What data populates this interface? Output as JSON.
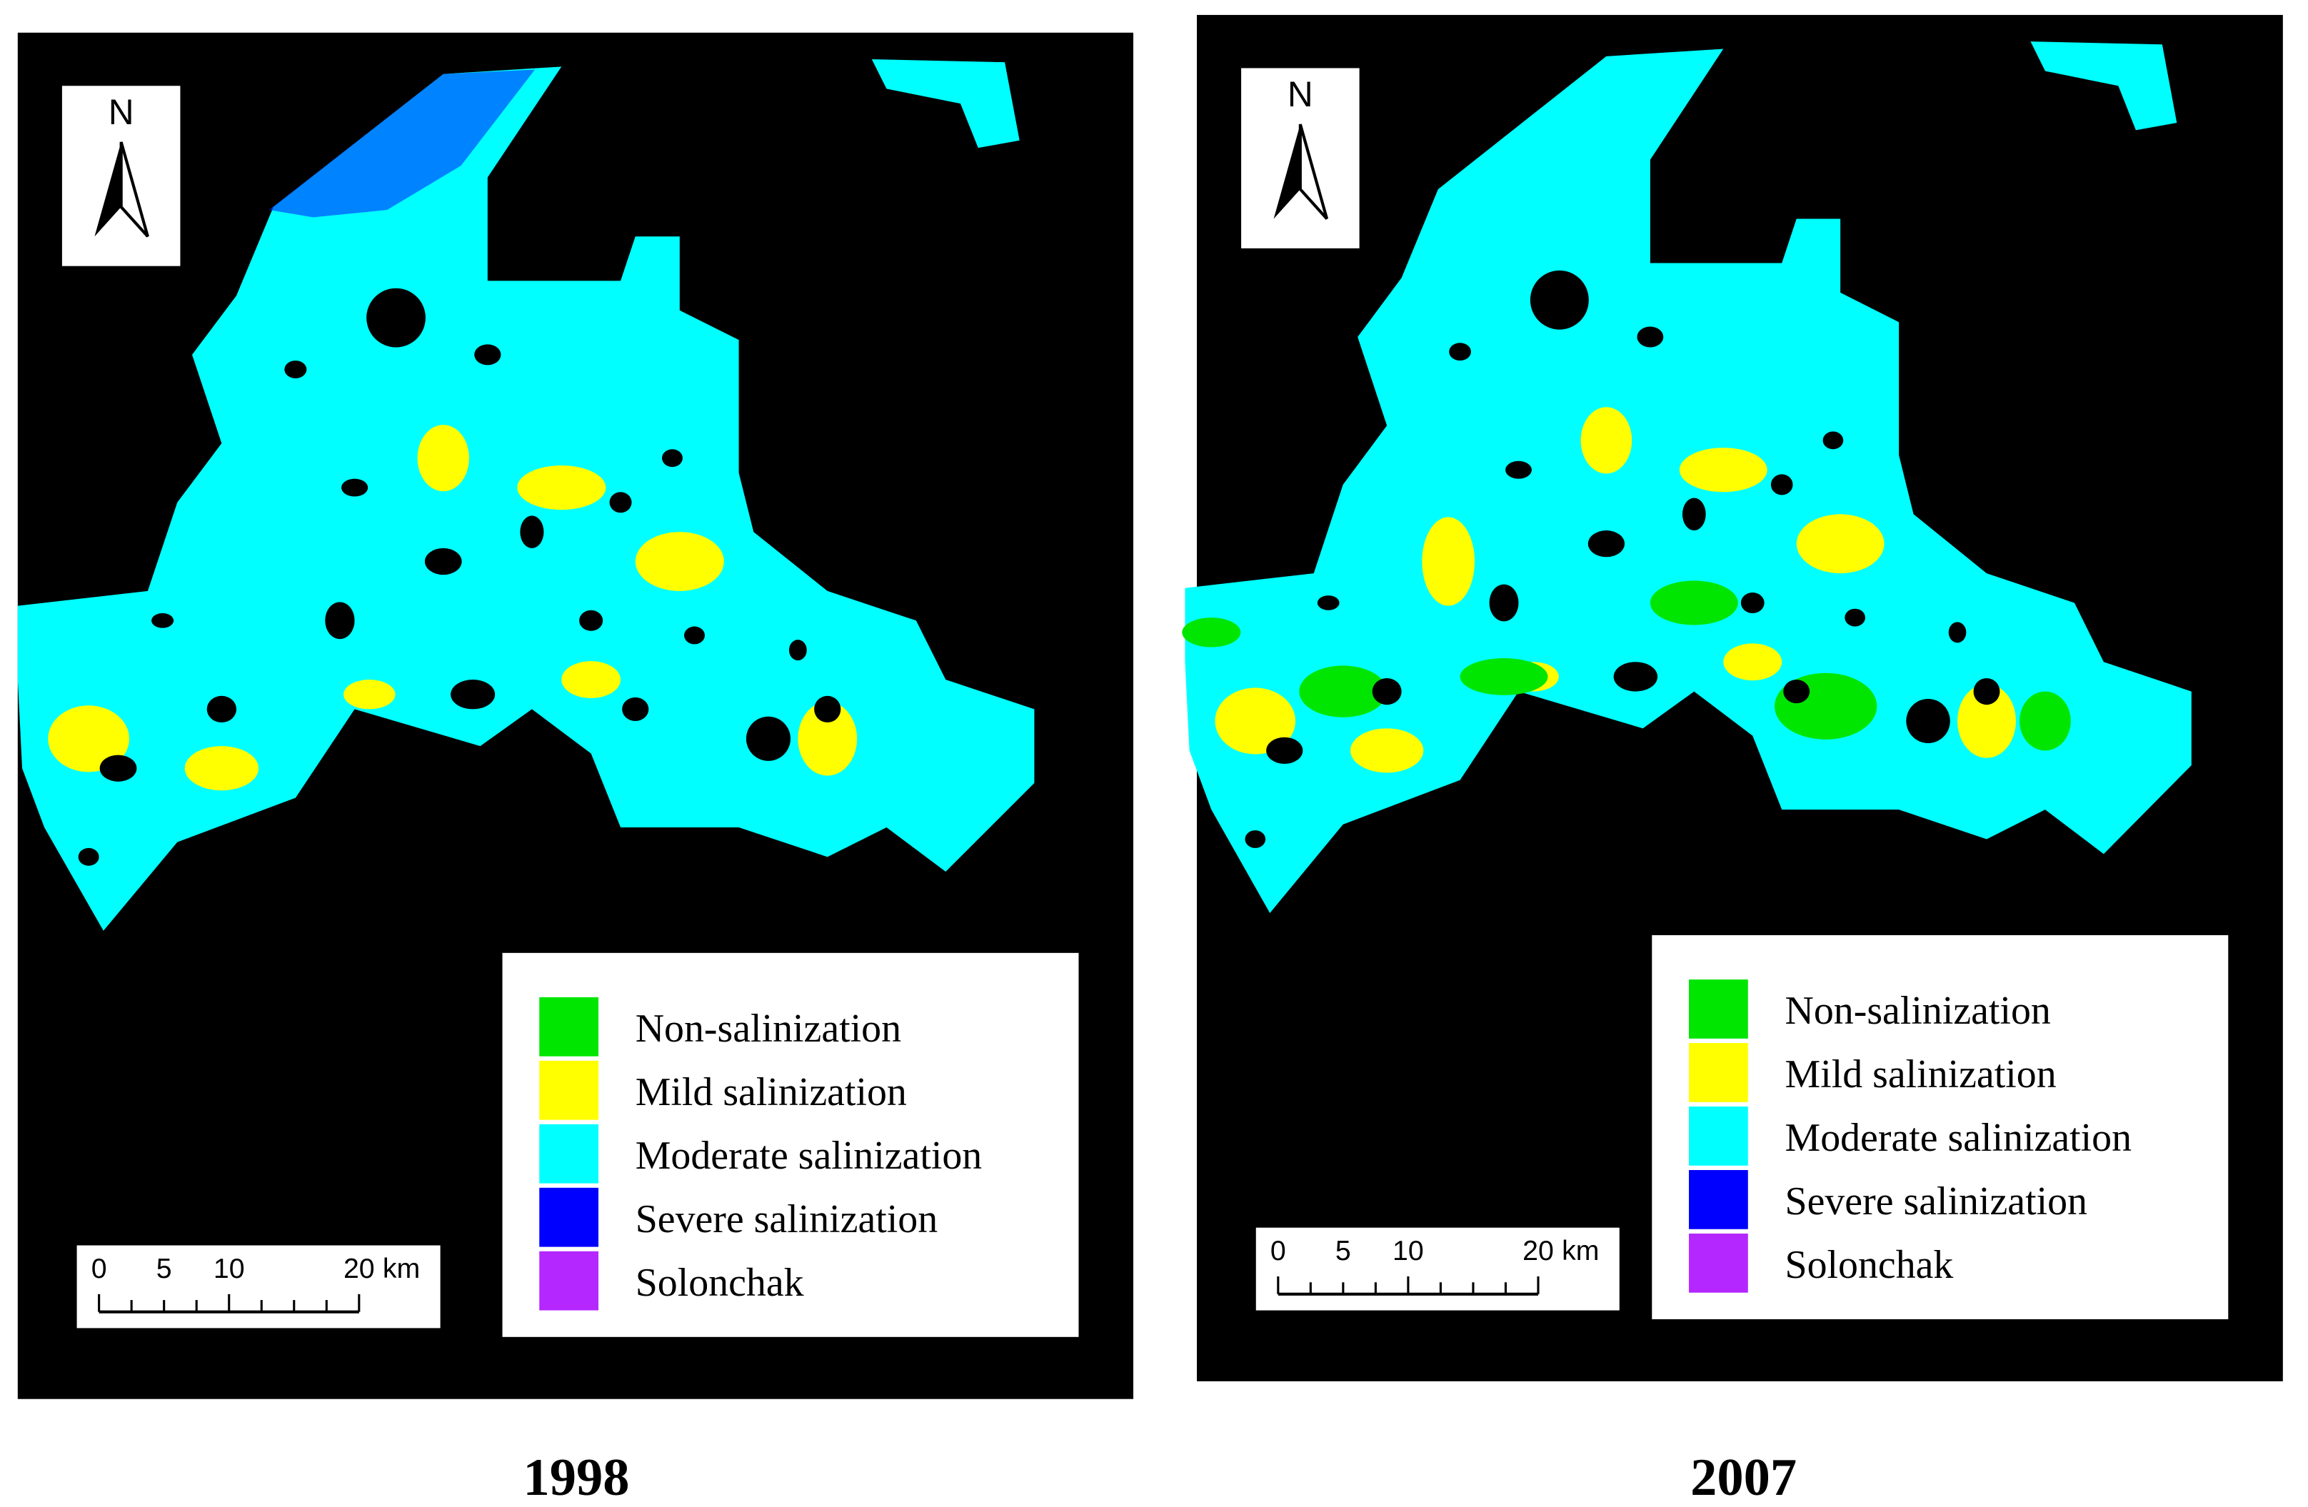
{
  "panels": [
    {
      "north": "N",
      "legend": [
        {
          "label": "Non-salinization",
          "color": "#00e600"
        },
        {
          "label": "Mild salinization",
          "color": "#ffff00"
        },
        {
          "label": "Moderate salinization",
          "color": "#00ffff"
        },
        {
          "label": "Severe salinization",
          "color": "#0000ff"
        },
        {
          "label": "Solonchak",
          "color": "#b428ff"
        }
      ],
      "scale": {
        "ticks": [
          "0",
          "5",
          "10",
          "20"
        ],
        "unit": "km"
      },
      "caption": "1998"
    },
    {
      "north": "N",
      "legend": [
        {
          "label": "Non-salinization",
          "color": "#00e600"
        },
        {
          "label": "Mild salinization",
          "color": "#ffff00"
        },
        {
          "label": "Moderate salinization",
          "color": "#00ffff"
        },
        {
          "label": "Severe salinization",
          "color": "#0000ff"
        },
        {
          "label": "Solonchak",
          "color": "#b428ff"
        }
      ],
      "scale": {
        "ticks": [
          "0",
          "5",
          "10",
          "20"
        ],
        "unit": "km"
      },
      "caption": "2007"
    }
  ]
}
